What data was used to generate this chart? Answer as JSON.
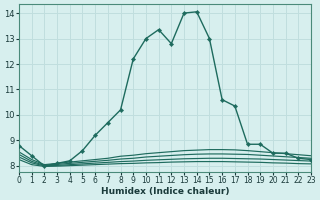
{
  "xlabel": "Humidex (Indice chaleur)",
  "bg_color": "#d7efee",
  "grid_color": "#c0dede",
  "line_color": "#1e6b5e",
  "xlim": [
    0,
    23
  ],
  "ylim": [
    7.75,
    14.35
  ],
  "yticks": [
    8,
    9,
    10,
    11,
    12,
    13,
    14
  ],
  "xticks": [
    0,
    1,
    2,
    3,
    4,
    5,
    6,
    7,
    8,
    9,
    10,
    11,
    12,
    13,
    14,
    15,
    16,
    17,
    18,
    19,
    20,
    21,
    22,
    23
  ],
  "main_line": {
    "x": [
      0,
      1,
      2,
      3,
      4,
      5,
      6,
      7,
      8,
      9,
      10,
      11,
      12,
      13,
      14,
      15,
      16,
      17,
      18,
      19,
      20,
      21,
      22,
      23
    ],
    "y": [
      8.8,
      8.4,
      8.0,
      8.1,
      8.2,
      8.6,
      9.2,
      9.7,
      10.2,
      12.2,
      13.0,
      13.35,
      12.8,
      14.0,
      14.05,
      13.0,
      10.6,
      10.35,
      8.85,
      8.85,
      8.5,
      8.5,
      8.3,
      8.25
    ]
  },
  "flat_lines": [
    {
      "x": [
        0,
        1,
        2,
        3,
        4,
        5,
        6,
        7,
        8,
        9,
        10,
        11,
        12,
        13,
        14,
        15,
        16,
        17,
        18,
        19,
        20,
        21,
        22,
        23
      ],
      "y": [
        8.55,
        8.25,
        8.05,
        8.1,
        8.15,
        8.2,
        8.25,
        8.3,
        8.38,
        8.42,
        8.48,
        8.52,
        8.56,
        8.6,
        8.62,
        8.64,
        8.64,
        8.63,
        8.6,
        8.56,
        8.52,
        8.48,
        8.44,
        8.4
      ]
    },
    {
      "x": [
        0,
        1,
        2,
        3,
        4,
        5,
        6,
        7,
        8,
        9,
        10,
        11,
        12,
        13,
        14,
        15,
        16,
        17,
        18,
        19,
        20,
        21,
        22,
        23
      ],
      "y": [
        8.45,
        8.18,
        8.02,
        8.06,
        8.1,
        8.14,
        8.18,
        8.22,
        8.27,
        8.3,
        8.35,
        8.38,
        8.41,
        8.44,
        8.46,
        8.47,
        8.47,
        8.46,
        8.45,
        8.42,
        8.39,
        8.36,
        8.33,
        8.3
      ]
    },
    {
      "x": [
        0,
        1,
        2,
        3,
        4,
        5,
        6,
        7,
        8,
        9,
        10,
        11,
        12,
        13,
        14,
        15,
        16,
        17,
        18,
        19,
        20,
        21,
        22,
        23
      ],
      "y": [
        8.35,
        8.12,
        8.0,
        8.02,
        8.05,
        8.08,
        8.11,
        8.14,
        8.17,
        8.19,
        8.22,
        8.24,
        8.26,
        8.28,
        8.29,
        8.3,
        8.3,
        8.29,
        8.28,
        8.27,
        8.25,
        8.23,
        8.21,
        8.19
      ]
    },
    {
      "x": [
        0,
        1,
        2,
        3,
        4,
        5,
        6,
        7,
        8,
        9,
        10,
        11,
        12,
        13,
        14,
        15,
        16,
        17,
        18,
        19,
        20,
        21,
        22,
        23
      ],
      "y": [
        8.25,
        8.05,
        7.98,
        7.99,
        8.01,
        8.03,
        8.05,
        8.07,
        8.09,
        8.1,
        8.12,
        8.13,
        8.15,
        8.16,
        8.17,
        8.17,
        8.17,
        8.16,
        8.15,
        8.14,
        8.12,
        8.11,
        8.09,
        8.08
      ]
    }
  ]
}
